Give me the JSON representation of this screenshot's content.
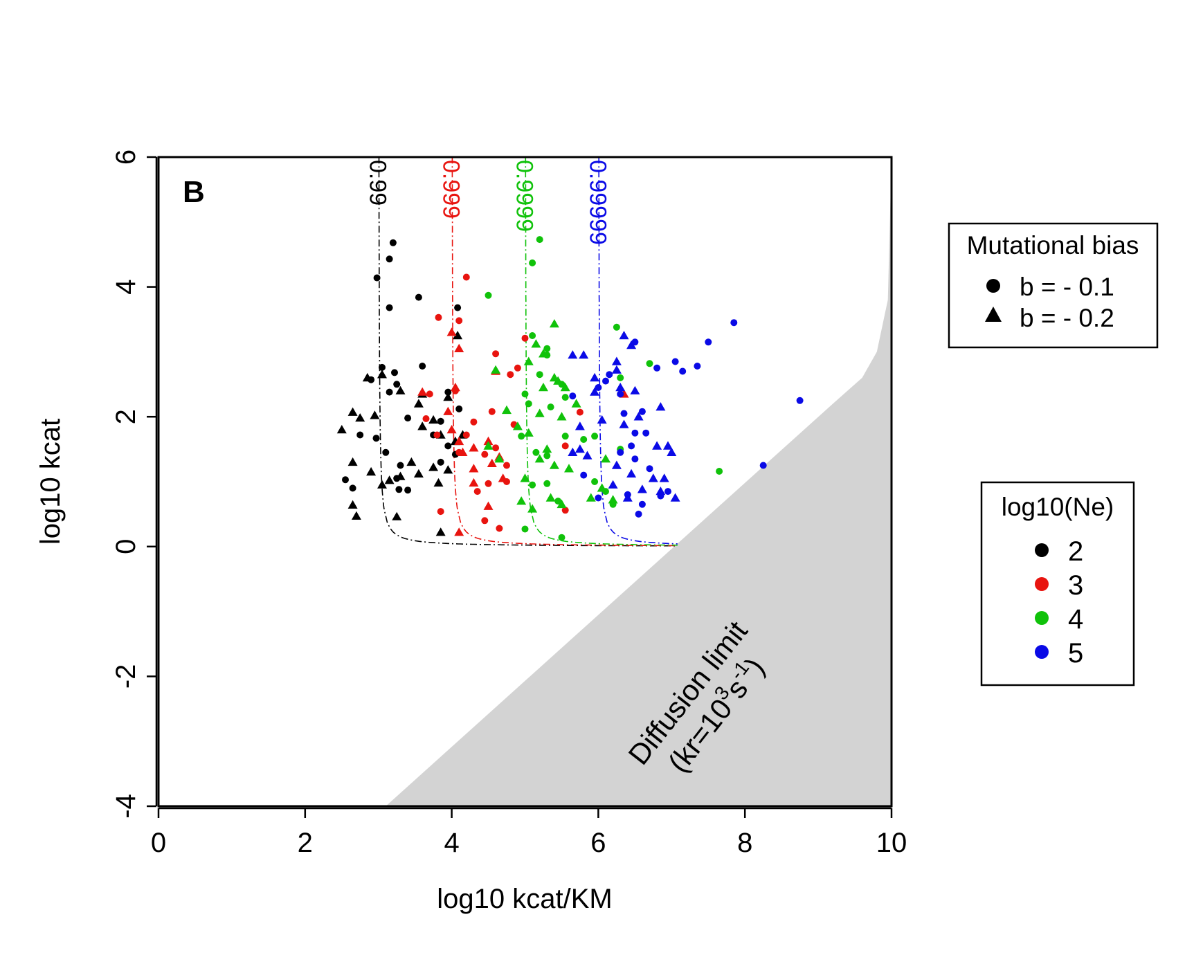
{
  "chart_data": {
    "type": "scatter",
    "panel_label": "B",
    "xlabel": "log10 kcat/KM",
    "ylabel": "log10 kcat",
    "xlim": [
      0,
      10
    ],
    "ylim": [
      -4,
      6
    ],
    "xticks": [
      0,
      2,
      4,
      6,
      8,
      10
    ],
    "yticks": [
      -4,
      -2,
      0,
      2,
      4,
      6
    ],
    "colors": {
      "2": "#000000",
      "3": "#e8140f",
      "4": "#10c20a",
      "5": "#0a0ae6"
    },
    "legend_bias": {
      "title": "Mutational bias",
      "placement": "right-top",
      "entries": [
        {
          "label": "b = - 0.1",
          "marker": "circle"
        },
        {
          "label": "b = - 0.2",
          "marker": "triangle"
        }
      ]
    },
    "legend_ne": {
      "title": "log10(Ne)",
      "placement": "right-middle",
      "entries": [
        {
          "label": "2",
          "group": "2"
        },
        {
          "label": "3",
          "group": "3"
        },
        {
          "label": "4",
          "group": "4"
        },
        {
          "label": "5",
          "group": "5"
        }
      ]
    },
    "contours": [
      {
        "label": "0.99",
        "group": "2",
        "x0": 3,
        "ystart": 6,
        "asymptote": 0,
        "xend": 7.1
      },
      {
        "label": "0.999",
        "group": "3",
        "x0": 4,
        "ystart": 6,
        "asymptote": 0,
        "xend": 7.1
      },
      {
        "label": "0.9999",
        "group": "4",
        "x0": 5,
        "ystart": 6,
        "asymptote": 0,
        "xend": 7.1
      },
      {
        "label": "0.99999",
        "group": "5",
        "x0": 6,
        "ystart": 6,
        "asymptote": 0,
        "xend": 7.1
      }
    ],
    "diffusion_region": {
      "line1": "Diffusion limit",
      "line2_prefix": "(kr=10",
      "line2_sup1": "3",
      "line2_mid": "s",
      "line2_sup2": "-1",
      "line2_suffix": ")",
      "boundary": [
        [
          3.1,
          -4
        ],
        [
          9.2,
          2.2
        ],
        [
          9.6,
          2.6
        ],
        [
          9.8,
          3.0
        ],
        [
          9.95,
          3.8
        ],
        [
          10,
          6
        ]
      ]
    },
    "series": [
      {
        "group": "2",
        "marker": "circle",
        "points": [
          [
            3.2,
            4.68
          ],
          [
            3.15,
            4.43
          ],
          [
            2.98,
            4.14
          ],
          [
            3.15,
            3.68
          ],
          [
            3.55,
            3.84
          ],
          [
            4.08,
            3.68
          ],
          [
            3.05,
            2.76
          ],
          [
            3.22,
            2.68
          ],
          [
            2.9,
            2.57
          ],
          [
            3.6,
            2.78
          ],
          [
            3.25,
            2.5
          ],
          [
            3.15,
            2.38
          ],
          [
            3.95,
            2.38
          ],
          [
            3.4,
            1.98
          ],
          [
            3.85,
            1.93
          ],
          [
            3.1,
            1.45
          ],
          [
            2.75,
            1.72
          ],
          [
            2.97,
            1.67
          ],
          [
            3.75,
            1.72
          ],
          [
            3.95,
            1.55
          ],
          [
            4.05,
            1.42
          ],
          [
            2.55,
            1.03
          ],
          [
            2.65,
            0.9
          ],
          [
            3.25,
            1.05
          ],
          [
            3.28,
            0.88
          ],
          [
            3.4,
            0.87
          ],
          [
            3.3,
            1.25
          ],
          [
            3.85,
            1.3
          ],
          [
            4.1,
            2.12
          ]
        ]
      },
      {
        "group": "2",
        "marker": "triangle",
        "points": [
          [
            2.85,
            2.6
          ],
          [
            3.05,
            2.65
          ],
          [
            3.3,
            2.4
          ],
          [
            3.6,
            2.35
          ],
          [
            4.08,
            3.25
          ],
          [
            3.95,
            2.3
          ],
          [
            2.5,
            1.8
          ],
          [
            2.65,
            2.07
          ],
          [
            2.75,
            1.98
          ],
          [
            2.95,
            2.02
          ],
          [
            3.55,
            2.2
          ],
          [
            3.6,
            1.85
          ],
          [
            3.75,
            1.95
          ],
          [
            3.85,
            1.72
          ],
          [
            4.05,
            1.62
          ],
          [
            4.15,
            1.72
          ],
          [
            2.65,
            1.3
          ],
          [
            2.9,
            1.15
          ],
          [
            3.05,
            0.95
          ],
          [
            3.15,
            1.02
          ],
          [
            3.3,
            1.08
          ],
          [
            3.45,
            1.3
          ],
          [
            3.55,
            1.12
          ],
          [
            3.75,
            1.22
          ],
          [
            3.82,
            0.98
          ],
          [
            3.95,
            1.18
          ],
          [
            2.65,
            0.64
          ],
          [
            2.7,
            0.47
          ],
          [
            3.25,
            0.46
          ],
          [
            3.85,
            0.22
          ]
        ]
      },
      {
        "group": "3",
        "marker": "circle",
        "points": [
          [
            4.2,
            4.15
          ],
          [
            3.82,
            3.53
          ],
          [
            4.1,
            3.48
          ],
          [
            4.8,
            2.65
          ],
          [
            4.9,
            2.75
          ],
          [
            4.6,
            2.97
          ],
          [
            5.0,
            3.21
          ],
          [
            3.7,
            2.35
          ],
          [
            4.05,
            2.4
          ],
          [
            4.3,
            1.92
          ],
          [
            4.55,
            2.08
          ],
          [
            4.85,
            1.88
          ],
          [
            5.75,
            2.07
          ],
          [
            3.65,
            1.97
          ],
          [
            3.8,
            1.72
          ],
          [
            4.2,
            1.72
          ],
          [
            4.1,
            1.45
          ],
          [
            4.45,
            1.42
          ],
          [
            4.6,
            1.52
          ],
          [
            5.55,
            1.55
          ],
          [
            4.75,
            1.25
          ],
          [
            4.5,
            0.97
          ],
          [
            4.75,
            1.0
          ],
          [
            4.35,
            0.85
          ],
          [
            3.85,
            0.54
          ],
          [
            4.45,
            0.4
          ],
          [
            4.65,
            0.28
          ],
          [
            5.55,
            0.56
          ]
        ]
      },
      {
        "group": "3",
        "marker": "triangle",
        "points": [
          [
            4.0,
            3.3
          ],
          [
            3.6,
            2.38
          ],
          [
            4.05,
            2.45
          ],
          [
            4.1,
            3.05
          ],
          [
            4.6,
            2.7
          ],
          [
            3.95,
            2.08
          ],
          [
            4.0,
            1.8
          ],
          [
            4.1,
            1.62
          ],
          [
            4.3,
            1.52
          ],
          [
            4.5,
            1.62
          ],
          [
            4.15,
            1.45
          ],
          [
            4.3,
            1.2
          ],
          [
            4.55,
            1.28
          ],
          [
            4.65,
            1.38
          ],
          [
            4.7,
            1.05
          ],
          [
            4.3,
            0.98
          ],
          [
            4.5,
            0.62
          ],
          [
            4.1,
            0.22
          ],
          [
            6.35,
            2.35
          ]
        ]
      },
      {
        "group": "4",
        "marker": "circle",
        "points": [
          [
            5.2,
            4.73
          ],
          [
            5.1,
            4.37
          ],
          [
            4.5,
            3.87
          ],
          [
            5.1,
            3.25
          ],
          [
            5.3,
            2.95
          ],
          [
            5.3,
            3.05
          ],
          [
            5.0,
            2.35
          ],
          [
            5.5,
            2.5
          ],
          [
            5.05,
            2.2
          ],
          [
            5.35,
            2.15
          ],
          [
            5.55,
            2.3
          ],
          [
            5.2,
            2.65
          ],
          [
            5.55,
            1.7
          ],
          [
            5.8,
            1.65
          ],
          [
            5.95,
            1.7
          ],
          [
            4.95,
            1.7
          ],
          [
            5.15,
            1.45
          ],
          [
            5.3,
            1.4
          ],
          [
            6.3,
            1.5
          ],
          [
            5.1,
            0.95
          ],
          [
            5.3,
            0.97
          ],
          [
            5.95,
            1.0
          ],
          [
            6.1,
            0.85
          ],
          [
            5.45,
            0.7
          ],
          [
            6.2,
            0.65
          ],
          [
            5.0,
            0.27
          ],
          [
            5.5,
            0.14
          ],
          [
            6.25,
            3.38
          ],
          [
            6.7,
            2.82
          ],
          [
            6.3,
            2.6
          ],
          [
            7.65,
            1.16
          ]
        ]
      },
      {
        "group": "4",
        "marker": "triangle",
        "points": [
          [
            5.4,
            3.43
          ],
          [
            5.15,
            3.12
          ],
          [
            5.25,
            2.97
          ],
          [
            5.05,
            2.85
          ],
          [
            5.4,
            2.6
          ],
          [
            5.25,
            2.45
          ],
          [
            5.45,
            2.55
          ],
          [
            5.55,
            2.45
          ],
          [
            5.7,
            2.2
          ],
          [
            4.75,
            2.1
          ],
          [
            5.2,
            2.05
          ],
          [
            5.5,
            2.0
          ],
          [
            4.9,
            1.85
          ],
          [
            5.05,
            1.75
          ],
          [
            5.3,
            1.5
          ],
          [
            5.2,
            1.35
          ],
          [
            5.4,
            1.25
          ],
          [
            4.65,
            1.35
          ],
          [
            4.5,
            1.55
          ],
          [
            5.0,
            1.05
          ],
          [
            5.35,
            0.75
          ],
          [
            5.5,
            0.65
          ],
          [
            4.95,
            0.7
          ],
          [
            5.1,
            0.58
          ],
          [
            5.9,
            0.75
          ],
          [
            6.2,
            0.72
          ],
          [
            6.1,
            1.35
          ],
          [
            5.6,
            1.2
          ],
          [
            4.6,
            2.72
          ],
          [
            6.05,
            0.9
          ]
        ]
      },
      {
        "group": "5",
        "marker": "circle",
        "points": [
          [
            7.85,
            3.45
          ],
          [
            7.5,
            3.15
          ],
          [
            6.5,
            3.15
          ],
          [
            6.8,
            2.75
          ],
          [
            7.05,
            2.85
          ],
          [
            7.15,
            2.7
          ],
          [
            7.35,
            2.78
          ],
          [
            6.15,
            2.65
          ],
          [
            6.1,
            2.55
          ],
          [
            6.0,
            2.45
          ],
          [
            6.35,
            2.05
          ],
          [
            6.6,
            2.08
          ],
          [
            6.3,
            2.35
          ],
          [
            5.65,
            2.32
          ],
          [
            6.5,
            1.75
          ],
          [
            6.65,
            1.75
          ],
          [
            6.3,
            1.45
          ],
          [
            6.45,
            1.55
          ],
          [
            6.5,
            1.35
          ],
          [
            6.7,
            1.2
          ],
          [
            5.8,
            1.1
          ],
          [
            6.0,
            0.75
          ],
          [
            6.4,
            0.8
          ],
          [
            6.85,
            0.78
          ],
          [
            6.95,
            0.85
          ],
          [
            6.55,
            0.5
          ],
          [
            8.75,
            2.25
          ],
          [
            8.25,
            1.25
          ],
          [
            6.6,
            0.65
          ]
        ]
      },
      {
        "group": "5",
        "marker": "triangle",
        "points": [
          [
            6.35,
            3.25
          ],
          [
            5.65,
            2.95
          ],
          [
            5.8,
            2.95
          ],
          [
            6.25,
            2.85
          ],
          [
            6.45,
            3.1
          ],
          [
            6.25,
            2.72
          ],
          [
            5.95,
            2.6
          ],
          [
            5.95,
            2.38
          ],
          [
            6.3,
            2.45
          ],
          [
            6.5,
            2.4
          ],
          [
            6.05,
            1.95
          ],
          [
            5.75,
            1.85
          ],
          [
            6.35,
            1.88
          ],
          [
            6.55,
            2.0
          ],
          [
            6.85,
            2.15
          ],
          [
            6.8,
            1.55
          ],
          [
            6.95,
            1.55
          ],
          [
            7.0,
            1.45
          ],
          [
            5.65,
            1.45
          ],
          [
            5.85,
            1.4
          ],
          [
            5.75,
            1.5
          ],
          [
            6.25,
            1.25
          ],
          [
            6.45,
            1.12
          ],
          [
            6.75,
            1.05
          ],
          [
            6.9,
            1.05
          ],
          [
            6.2,
            0.95
          ],
          [
            6.4,
            0.75
          ],
          [
            6.6,
            0.88
          ],
          [
            6.85,
            0.85
          ],
          [
            7.05,
            0.75
          ]
        ]
      }
    ]
  }
}
